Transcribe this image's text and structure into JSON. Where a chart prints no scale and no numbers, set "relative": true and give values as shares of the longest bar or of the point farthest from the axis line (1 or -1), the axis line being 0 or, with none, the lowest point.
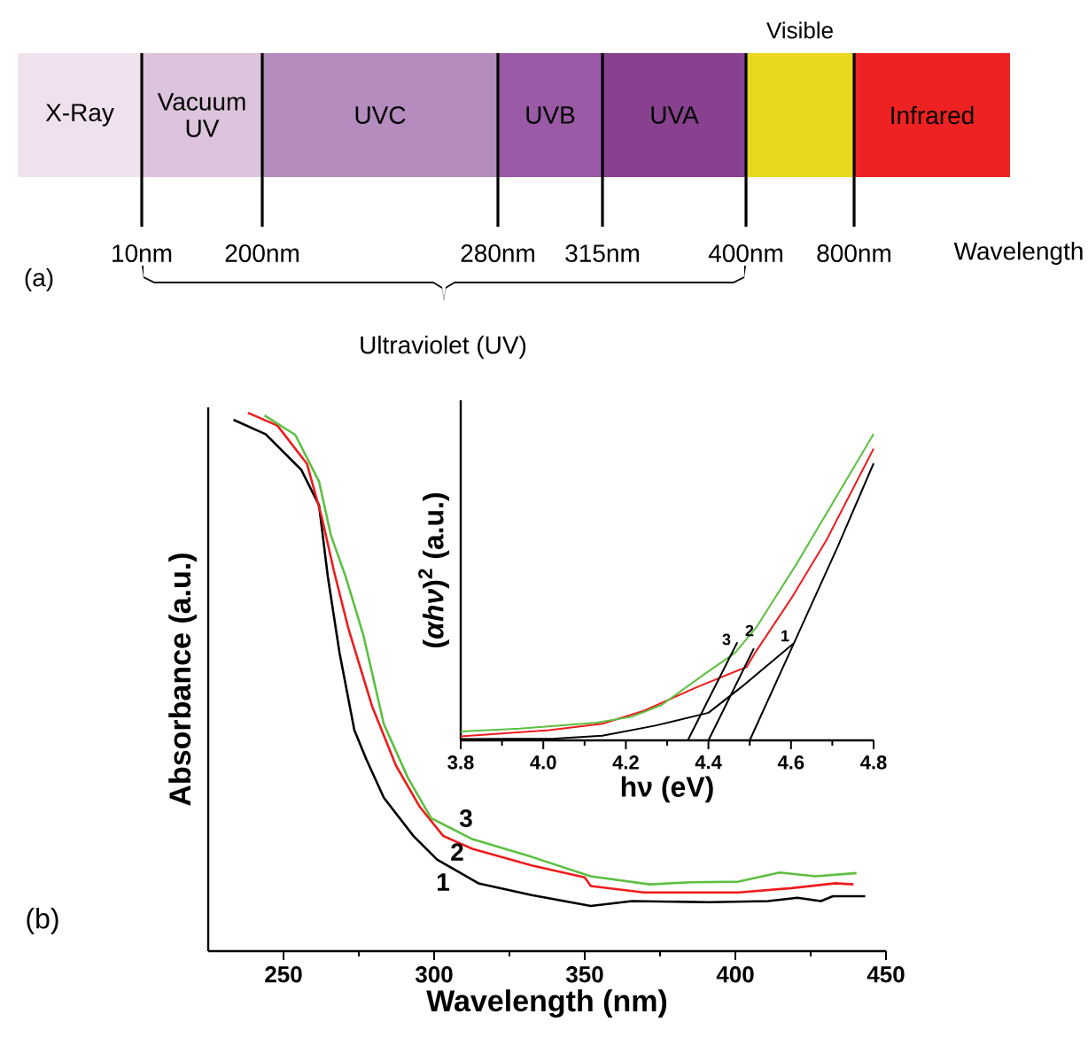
{
  "chart_data": [
    {
      "type": "other",
      "categories": [
        "X-Ray",
        "Vacuum UV",
        "UVC",
        "UVB",
        "UVA",
        "Visible",
        "Infrared"
      ],
      "colors": [
        "#efe2ee",
        "#dcc4dc",
        "#b48cbe",
        "#9a5aa6",
        "#87418f",
        "#e8d820",
        "#ee2222"
      ],
      "annotations": [
        "10nm",
        "200nm",
        "280nm",
        "315nm",
        "400nm",
        "800nm",
        "Wavelength",
        "Ultraviolet (UV)",
        "(a)"
      ]
    },
    {
      "type": "line",
      "xlabel": "Wavelength (nm)",
      "ylabel": "Absorbance (a.u.)",
      "xlim": [
        225,
        450
      ],
      "xticks": [
        250,
        300,
        350,
        400,
        450
      ],
      "relative": true,
      "series": [
        {
          "color": "#000000",
          "x": [
            233.4,
            244.1,
            255.9,
            261.8,
            264.7,
            268.6,
            273.5,
            277.5,
            283.3,
            293.1,
            301,
            314.7,
            332.4,
            352,
            365.7,
            391.2,
            410.8,
            420.6,
            428.4,
            432.4,
            443.1
          ],
          "values": [
            0.987,
            0.96,
            0.894,
            0.828,
            0.696,
            0.554,
            0.411,
            0.356,
            0.285,
            0.214,
            0.17,
            0.126,
            0.104,
            0.084,
            0.093,
            0.091,
            0.093,
            0.099,
            0.093,
            0.102,
            0.102
          ]
        },
        {
          "color": "#ee1c1c",
          "x": [
            238.2,
            248,
            257.8,
            262.7,
            266.7,
            271.6,
            279.4,
            287.3,
            295.1,
            303,
            312.7,
            332.4,
            350,
            352,
            369.6,
            401,
            418.6,
            433.3,
            439.2
          ],
          "values": [
            1,
            0.976,
            0.905,
            0.806,
            0.707,
            0.598,
            0.455,
            0.345,
            0.269,
            0.214,
            0.19,
            0.159,
            0.137,
            0.121,
            0.109,
            0.109,
            0.117,
            0.126,
            0.124
          ]
        },
        {
          "color": "#5cc040",
          "x": [
            243.7,
            253.9,
            261.8,
            265.7,
            270.6,
            276.5,
            283.3,
            291.2,
            299,
            312.7,
            332.4,
            352,
            371.6,
            385.3,
            401,
            414.7,
            426.5,
            440.2
          ],
          "values": [
            0.995,
            0.959,
            0.872,
            0.773,
            0.696,
            0.587,
            0.422,
            0.323,
            0.247,
            0.208,
            0.175,
            0.139,
            0.124,
            0.128,
            0.129,
            0.146,
            0.139,
            0.145
          ]
        }
      ],
      "annotations": [
        "1",
        "2",
        "3",
        "(b)"
      ]
    },
    {
      "type": "line",
      "xlabel": "hν (eV)",
      "ylabel": "(*αhν*)$^{2}$ (a.u.)",
      "xlim": [
        3.8,
        4.8
      ],
      "xticks": [
        3.8,
        {
          "value": 4.0,
          "label": "4.0"
        },
        4.2,
        4.4,
        4.6,
        4.8
      ],
      "relative": true,
      "series": [
        {
          "color": "#000000",
          "x": [
            3.8,
            4.029,
            4.143,
            4.271,
            4.4,
            4.479,
            4.607,
            4.714,
            4.8
          ],
          "values": [
            0.004,
            0.006,
            0.015,
            0.048,
            0.09,
            0.173,
            0.317,
            0.635,
            0.904
          ]
        },
        {
          "color": "#ee1c1c",
          "x": [
            3.8,
            4.014,
            4.143,
            4.243,
            4.371,
            4.493,
            4.514,
            4.6,
            4.686,
            4.8
          ],
          "values": [
            0.013,
            0.033,
            0.054,
            0.096,
            0.173,
            0.24,
            0.288,
            0.462,
            0.654,
            0.952
          ]
        },
        {
          "color": "#5cc040",
          "x": [
            3.8,
            3.943,
            4.129,
            4.214,
            4.286,
            4.386,
            4.464,
            4.514,
            4.614,
            4.8
          ],
          "values": [
            0.029,
            0.038,
            0.058,
            0.077,
            0.115,
            0.212,
            0.285,
            0.365,
            0.577,
            1.0
          ]
        },
        {
          "color": "#000000",
          "x": [
            4.5,
            4.607
          ],
          "values": [
            0,
            0.317
          ]
        },
        {
          "color": "#000000",
          "x": [
            4.4,
            4.51
          ],
          "values": [
            0,
            0.3
          ]
        },
        {
          "color": "#000000",
          "x": [
            4.35,
            4.47
          ],
          "values": [
            0,
            0.32
          ]
        }
      ],
      "annotations": [
        "1",
        "2",
        "3"
      ]
    }
  ]
}
